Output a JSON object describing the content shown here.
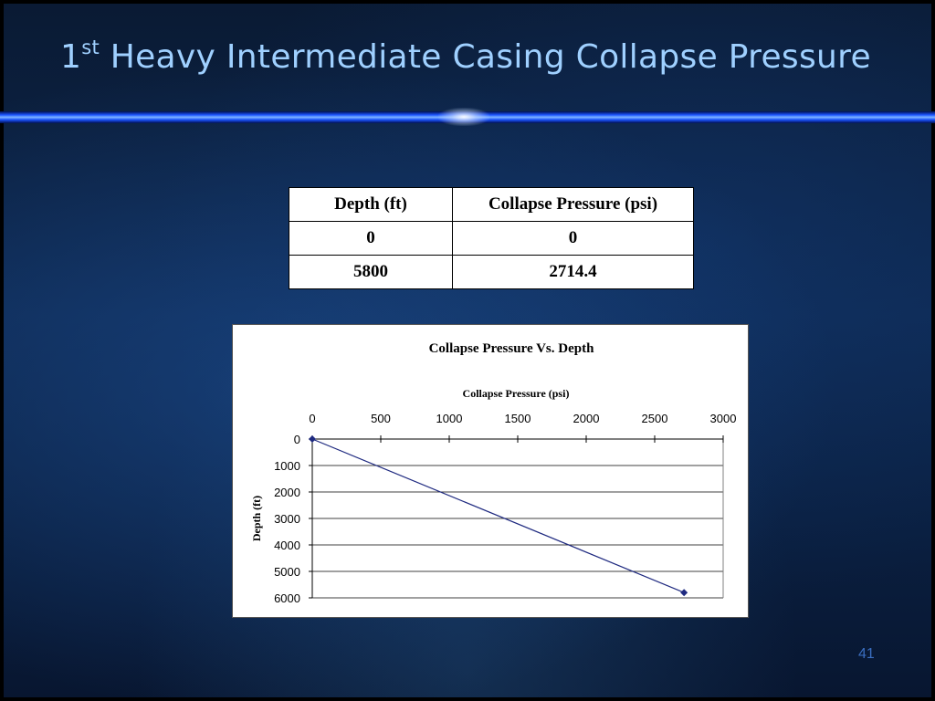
{
  "slide": {
    "title_prefix": "1",
    "title_sup": "st",
    "title_rest": " Heavy Intermediate Casing Collapse Pressure",
    "page_number": "41"
  },
  "table": {
    "headers": [
      "Depth (ft)",
      "Collapse Pressure (psi)"
    ],
    "rows": [
      [
        "0",
        "0"
      ],
      [
        "5800",
        "2714.4"
      ]
    ]
  },
  "chart_data": {
    "type": "line",
    "title": "Collapse Pressure Vs. Depth",
    "xlabel": "Collapse Pressure (psi)",
    "ylabel": "Depth (ft)",
    "x_axis_position": "top",
    "y_axis_reversed": true,
    "xlim": [
      0,
      3000
    ],
    "ylim": [
      0,
      6000
    ],
    "x_ticks": [
      0,
      500,
      1000,
      1500,
      2000,
      2500,
      3000
    ],
    "y_ticks": [
      0,
      1000,
      2000,
      3000,
      4000,
      5000,
      6000
    ],
    "grid": "horizontal",
    "series": [
      {
        "x": [
          0,
          2714.4
        ],
        "y": [
          0,
          5800
        ],
        "color": "#1f2a80",
        "marker": "diamond"
      }
    ]
  }
}
